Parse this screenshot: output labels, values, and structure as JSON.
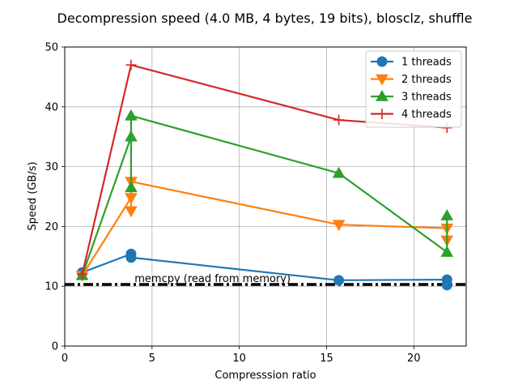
{
  "chart_data": {
    "type": "line",
    "title": "Decompression speed (4.0 MB, 4 bytes, 19 bits), blosclz, shuffle",
    "xlabel": "Compresssion ratio",
    "ylabel": "Speed (GB/s)",
    "xlim": [
      0,
      23
    ],
    "ylim": [
      0,
      50
    ],
    "xticks": [
      0,
      5,
      10,
      15,
      20
    ],
    "yticks": [
      0,
      10,
      20,
      30,
      40,
      50
    ],
    "grid": true,
    "legend_position": "top-right",
    "series": [
      {
        "name": "1 threads",
        "color": "#1f77b4",
        "marker": "circle",
        "points": [
          [
            1.0,
            12.3
          ],
          [
            3.8,
            15.4
          ],
          [
            3.8,
            14.8
          ],
          [
            15.7,
            11.0
          ],
          [
            21.9,
            11.1
          ],
          [
            21.9,
            10.2
          ]
        ]
      },
      {
        "name": "2 threads",
        "color": "#ff7f0e",
        "marker": "triangle-down",
        "points": [
          [
            1.0,
            11.8
          ],
          [
            3.8,
            24.8
          ],
          [
            3.8,
            22.6
          ],
          [
            3.8,
            27.5
          ],
          [
            15.7,
            20.3
          ],
          [
            21.9,
            19.7
          ],
          [
            21.9,
            17.7
          ]
        ]
      },
      {
        "name": "3 threads",
        "color": "#2ca02c",
        "marker": "triangle-up",
        "points": [
          [
            1.0,
            11.8
          ],
          [
            3.8,
            35.0
          ],
          [
            3.8,
            26.5
          ],
          [
            3.8,
            38.5
          ],
          [
            15.7,
            28.9
          ],
          [
            21.9,
            15.7
          ],
          [
            21.9,
            21.8
          ]
        ]
      },
      {
        "name": "4 threads",
        "color": "#d62728",
        "marker": "plus",
        "points": [
          [
            1.0,
            12.0
          ],
          [
            3.8,
            47.0
          ],
          [
            15.7,
            37.8
          ],
          [
            21.9,
            36.5
          ]
        ]
      }
    ],
    "reference_line": {
      "y": 10.3,
      "label": "memcpy (read from memory)",
      "color": "#000000"
    }
  }
}
